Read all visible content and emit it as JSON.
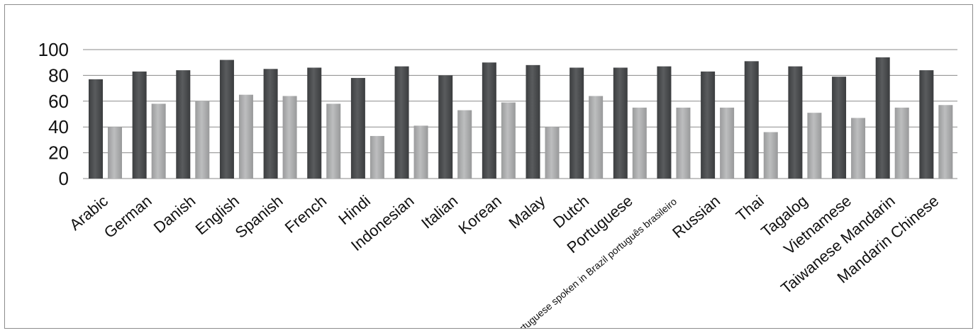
{
  "chart_data": {
    "type": "bar",
    "title": "",
    "xlabel": "",
    "ylabel": "",
    "ylim": [
      0,
      100
    ],
    "yticks": [
      "0",
      "20",
      "40",
      "60",
      "80",
      "100"
    ],
    "grid": true,
    "legend": "none",
    "categories": [
      "Arabic",
      "German",
      "Danish",
      "English",
      "Spanish",
      "French",
      "Hindi",
      "Indonesian",
      "Italian",
      "Korean",
      "Malay",
      "Dutch",
      "Portuguese",
      "Portuguese spoken in Brazil português brasileiro",
      "Russian",
      "Thai",
      "Tagalog",
      "Vietnamese",
      "Taiwanese Mandarin",
      "Mandarin Chinese"
    ],
    "series": [
      {
        "color": "#4a4c4e",
        "values": [
          77,
          83,
          84,
          92,
          85,
          86,
          78,
          87,
          80,
          90,
          88,
          86,
          86,
          87,
          83,
          91,
          87,
          79,
          94,
          84
        ]
      },
      {
        "color": "#a9aaab",
        "values": [
          40,
          58,
          60,
          65,
          64,
          58,
          33,
          41,
          53,
          59,
          40,
          64,
          55,
          55,
          55,
          36,
          51,
          47,
          55,
          57
        ]
      }
    ]
  }
}
